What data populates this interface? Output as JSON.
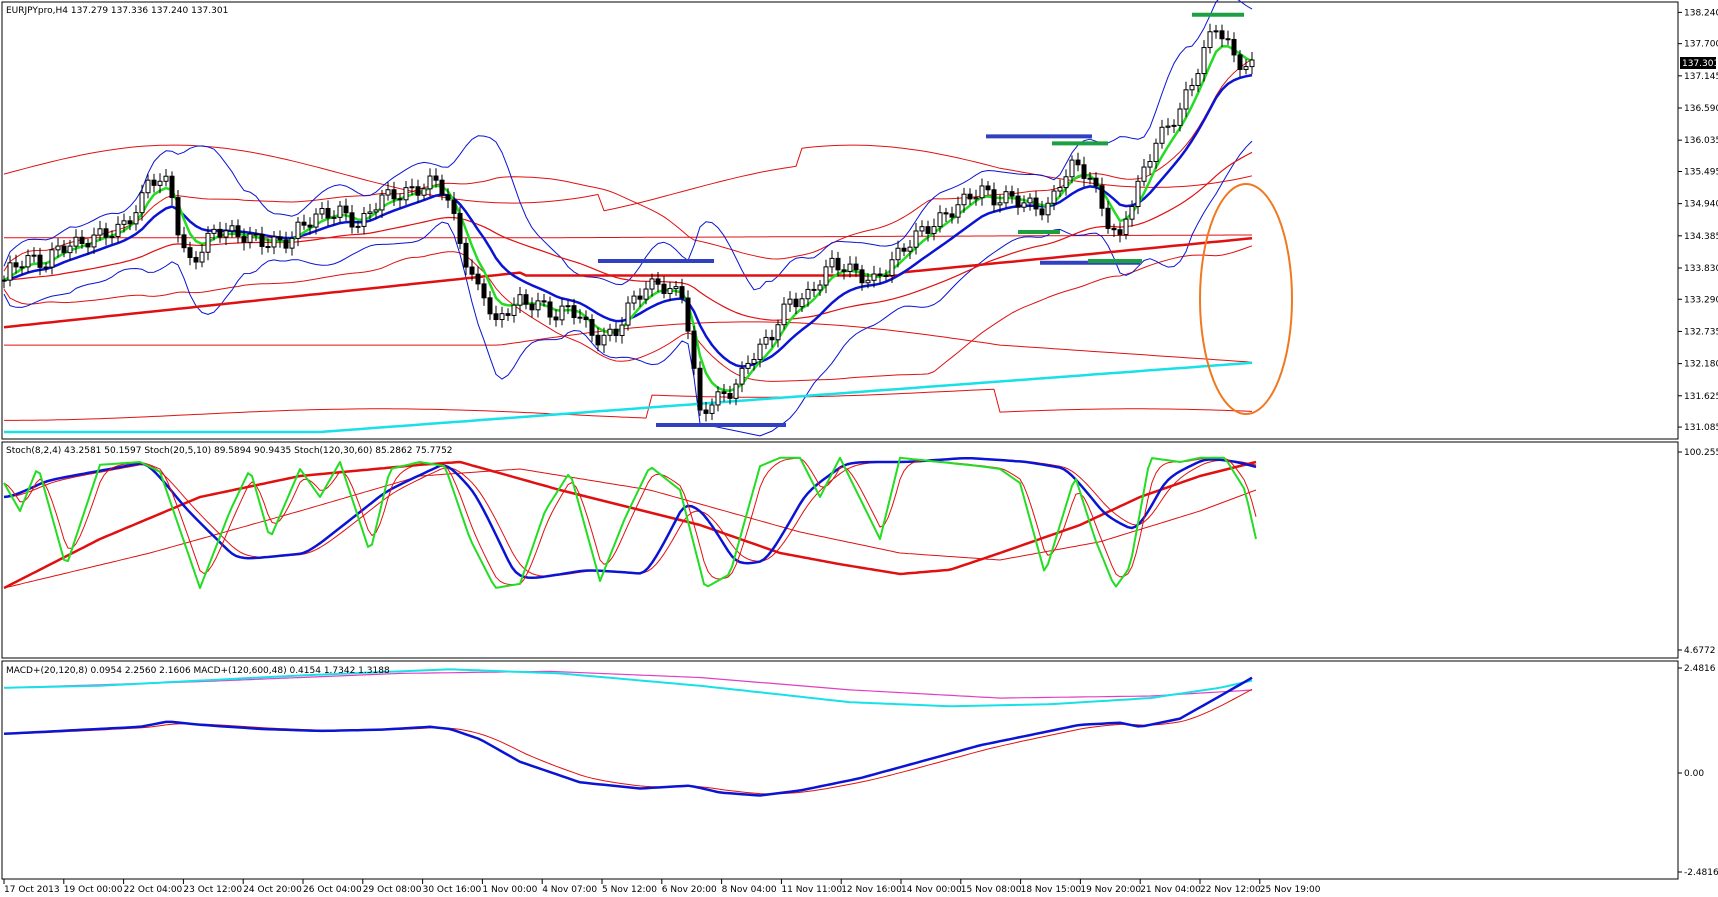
{
  "chart_data": [
    {
      "type": "candlestick",
      "panel": "price",
      "symbol_header": "EURJPYpro,H4  137.279 137.336 137.240 137.301",
      "current_price_label": "137.301",
      "y_ticks": [
        "138.240",
        "137.700",
        "137.145",
        "136.590",
        "136.035",
        "135.495",
        "134.940",
        "134.385",
        "133.830",
        "133.290",
        "132.735",
        "132.180",
        "131.625",
        "131.085"
      ],
      "y_tick_values": [
        138.24,
        137.7,
        137.145,
        136.59,
        136.035,
        135.495,
        134.94,
        134.385,
        133.83,
        133.29,
        132.735,
        132.18,
        131.625,
        131.085
      ],
      "ylim": [
        131.0,
        138.35
      ],
      "anchors": [
        [
          0,
          133.5
        ],
        [
          10,
          133.8
        ],
        [
          25,
          134.0
        ],
        [
          45,
          133.9
        ],
        [
          60,
          134.2
        ],
        [
          80,
          134.25
        ],
        [
          100,
          134.4
        ],
        [
          120,
          134.5
        ],
        [
          140,
          134.9
        ],
        [
          150,
          135.45
        ],
        [
          158,
          135.3
        ],
        [
          170,
          135.3
        ],
        [
          180,
          134.3
        ],
        [
          188,
          133.9
        ],
        [
          200,
          134.1
        ],
        [
          215,
          134.5
        ],
        [
          230,
          134.45
        ],
        [
          250,
          134.35
        ],
        [
          270,
          134.25
        ],
        [
          290,
          134.3
        ],
        [
          300,
          134.55
        ],
        [
          320,
          134.75
        ],
        [
          340,
          134.8
        ],
        [
          360,
          134.55
        ],
        [
          380,
          135.05
        ],
        [
          400,
          135.1
        ],
        [
          420,
          135.2
        ],
        [
          435,
          135.35
        ],
        [
          445,
          135.15
        ],
        [
          455,
          134.6
        ],
        [
          465,
          134.0
        ],
        [
          475,
          133.5
        ],
        [
          485,
          133.4
        ],
        [
          495,
          132.8
        ],
        [
          505,
          133.1
        ],
        [
          520,
          133.25
        ],
        [
          540,
          133.2
        ],
        [
          555,
          133.0
        ],
        [
          570,
          133.15
        ],
        [
          580,
          133.0
        ],
        [
          590,
          132.7
        ],
        [
          600,
          132.6
        ],
        [
          615,
          132.7
        ],
        [
          630,
          133.2
        ],
        [
          645,
          133.5
        ],
        [
          660,
          133.55
        ],
        [
          675,
          133.4
        ],
        [
          685,
          133.35
        ],
        [
          690,
          132.5
        ],
        [
          700,
          131.3
        ],
        [
          710,
          131.5
        ],
        [
          720,
          131.6
        ],
        [
          730,
          131.7
        ],
        [
          740,
          131.9
        ],
        [
          750,
          132.3
        ],
        [
          760,
          132.45
        ],
        [
          770,
          132.6
        ],
        [
          780,
          133.0
        ],
        [
          790,
          133.25
        ],
        [
          800,
          133.3
        ],
        [
          810,
          133.35
        ],
        [
          820,
          133.65
        ],
        [
          830,
          133.9
        ],
        [
          845,
          133.85
        ],
        [
          860,
          133.7
        ],
        [
          875,
          133.6
        ],
        [
          890,
          133.9
        ],
        [
          905,
          134.2
        ],
        [
          920,
          134.45
        ],
        [
          935,
          134.6
        ],
        [
          950,
          134.8
        ],
        [
          965,
          135.0
        ],
        [
          980,
          135.2
        ],
        [
          995,
          135.0
        ],
        [
          1010,
          135.05
        ],
        [
          1025,
          134.95
        ],
        [
          1040,
          134.85
        ],
        [
          1050,
          134.9
        ],
        [
          1060,
          135.3
        ],
        [
          1070,
          135.6
        ],
        [
          1080,
          135.55
        ],
        [
          1090,
          135.4
        ],
        [
          1100,
          134.95
        ],
        [
          1110,
          134.55
        ],
        [
          1120,
          134.3
        ],
        [
          1125,
          134.7
        ],
        [
          1135,
          135.1
        ],
        [
          1145,
          135.55
        ],
        [
          1155,
          136.0
        ],
        [
          1165,
          136.2
        ],
        [
          1180,
          136.55
        ],
        [
          1195,
          137.15
        ],
        [
          1205,
          137.6
        ],
        [
          1215,
          138.05
        ],
        [
          1225,
          137.75
        ],
        [
          1235,
          137.45
        ],
        [
          1245,
          137.3
        ],
        [
          1255,
          137.3
        ]
      ],
      "x_ticks": [
        "17 Oct 2013",
        "19 Oct 00:00",
        "22 Oct 04:00",
        "23 Oct 12:00",
        "24 Oct 20:00",
        "26 Oct 04:00",
        "29 Oct 08:00",
        "30 Oct 16:00",
        "1 Nov 00:00",
        "4 Nov 07:00",
        "5 Nov 12:00",
        "6 Nov 20:00",
        "8 Nov 04:00",
        "11 Nov 11:00",
        "12 Nov 16:00",
        "14 Nov 00:00",
        "15 Nov 08:00",
        "18 Nov 15:00",
        "19 Nov 20:00",
        "21 Nov 04:00",
        "22 Nov 12:00",
        "25 Nov 19:00"
      ]
    },
    {
      "type": "line",
      "panel": "stochastic",
      "header": "Stoch(8,2,4) 43.2581 50.1597  Stoch(20,5,10) 89.5894 90.9435  Stoch(120,30,60) 85.2862 75.7752",
      "y_ticks": [
        "100.2558",
        "4.6772"
      ],
      "ylim": [
        4.6772,
        100.2558
      ]
    },
    {
      "type": "line",
      "panel": "macd",
      "header": "MACD+(20,120,8) 0.0954 2.2560 2.1606  MACD+(120,600,48) 0.4154 1.7342 1.3188",
      "y_ticks": [
        "2.4816",
        "0.00",
        "-2.4816"
      ],
      "ylim": [
        -2.4816,
        2.4816
      ]
    }
  ],
  "colors": {
    "green_line": "#22dd22",
    "blue_line": "#0a14d2",
    "red_line": "#e01010",
    "cyan_line": "#18e0e8",
    "magenta_line": "#e040c0",
    "orange_ellipse": "#f07820",
    "support_resistance_blue": "#3040c0",
    "support_resistance_green": "#1aa040"
  }
}
